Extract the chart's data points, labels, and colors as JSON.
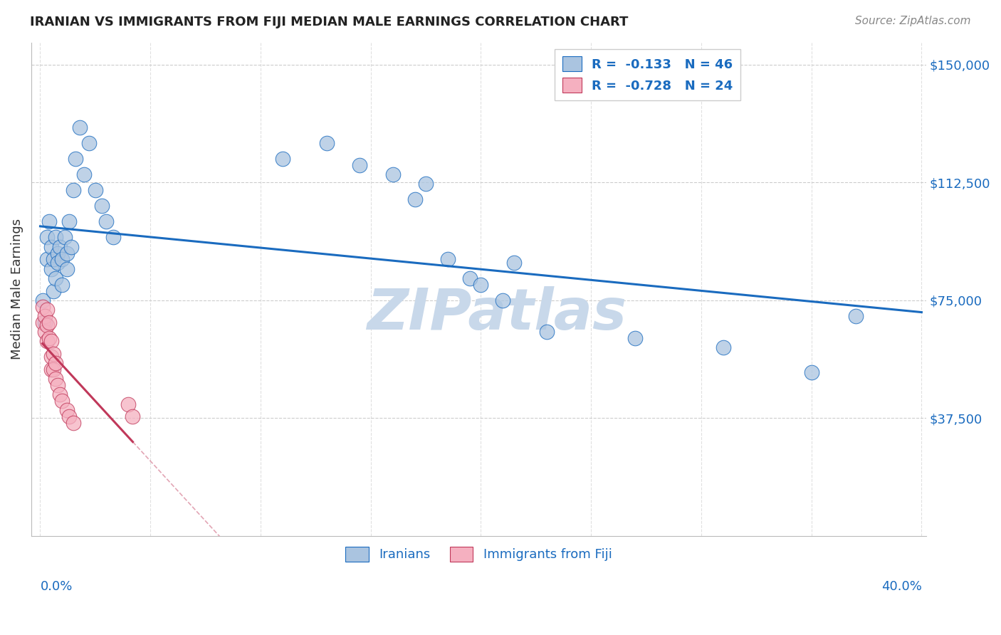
{
  "title": "IRANIAN VS IMMIGRANTS FROM FIJI MEDIAN MALE EARNINGS CORRELATION CHART",
  "source": "Source: ZipAtlas.com",
  "ylabel": "Median Male Earnings",
  "y_ticks": [
    0,
    37500,
    75000,
    112500,
    150000
  ],
  "y_tick_labels": [
    "",
    "$37,500",
    "$75,000",
    "$112,500",
    "$150,000"
  ],
  "x_min": 0.0,
  "x_max": 0.4,
  "y_min": 0,
  "y_max": 157000,
  "iranians_x": [
    0.001,
    0.002,
    0.003,
    0.003,
    0.004,
    0.005,
    0.005,
    0.006,
    0.006,
    0.007,
    0.007,
    0.008,
    0.008,
    0.009,
    0.01,
    0.01,
    0.011,
    0.012,
    0.012,
    0.013,
    0.014,
    0.015,
    0.016,
    0.018,
    0.02,
    0.022,
    0.025,
    0.028,
    0.03,
    0.033,
    0.11,
    0.13,
    0.145,
    0.16,
    0.17,
    0.175,
    0.185,
    0.195,
    0.2,
    0.21,
    0.215,
    0.23,
    0.27,
    0.31,
    0.35,
    0.37
  ],
  "iranians_y": [
    75000,
    68000,
    95000,
    88000,
    100000,
    92000,
    85000,
    78000,
    88000,
    95000,
    82000,
    90000,
    87000,
    92000,
    88000,
    80000,
    95000,
    90000,
    85000,
    100000,
    92000,
    110000,
    120000,
    130000,
    115000,
    125000,
    110000,
    105000,
    100000,
    95000,
    120000,
    125000,
    118000,
    115000,
    107000,
    112000,
    88000,
    82000,
    80000,
    75000,
    87000,
    65000,
    63000,
    60000,
    52000,
    70000
  ],
  "fiji_x": [
    0.001,
    0.001,
    0.002,
    0.002,
    0.003,
    0.003,
    0.003,
    0.004,
    0.004,
    0.005,
    0.005,
    0.005,
    0.006,
    0.006,
    0.007,
    0.007,
    0.008,
    0.009,
    0.01,
    0.012,
    0.013,
    0.015,
    0.04,
    0.042
  ],
  "fiji_y": [
    73000,
    68000,
    70000,
    65000,
    72000,
    67000,
    62000,
    68000,
    63000,
    62000,
    57000,
    53000,
    58000,
    53000,
    55000,
    50000,
    48000,
    45000,
    43000,
    40000,
    38000,
    36000,
    42000,
    38000
  ],
  "legend_R_iranian": "-0.133",
  "legend_N_iranian": "46",
  "legend_R_fiji": "-0.728",
  "legend_N_fiji": "24",
  "blue_scatter_color": "#aac4e0",
  "blue_line_color": "#1a6bbf",
  "pink_scatter_color": "#f5b0c0",
  "pink_line_color": "#c0385a",
  "title_color": "#222222",
  "tick_label_color": "#1a6bbf",
  "grid_color": "#cccccc",
  "watermark_text": "ZIPatlas",
  "watermark_color": "#c8d8ea"
}
